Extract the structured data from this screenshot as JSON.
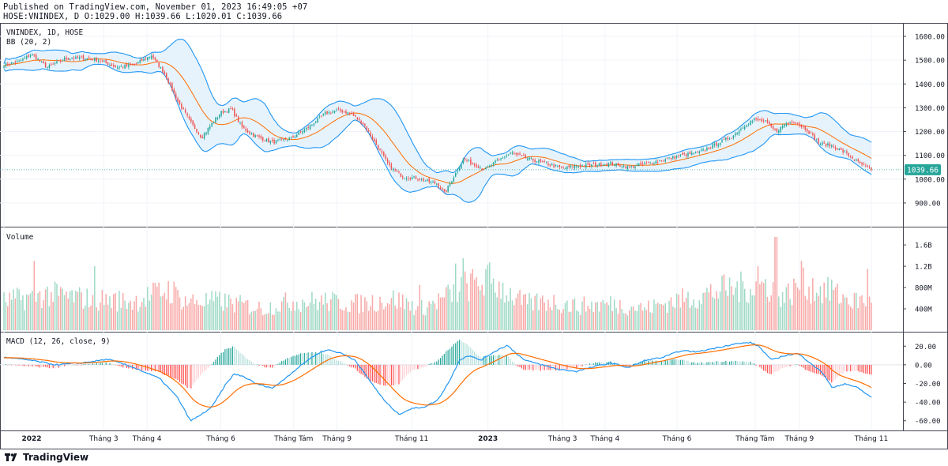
{
  "header": {
    "published": "Published on TradingView.com, November 01, 2023 16:49:05 +07",
    "ohlc": "HOSE:VNINDEX, D O:1029.00 H:1039.66 L:1020.01 C:1039.66"
  },
  "panes": {
    "price_title": "VNINDEX, 1D, HOSE",
    "bb_label": "BB (20, 2)",
    "volume_label": "Volume",
    "macd_label": "MACD (12, 26, close, 9)",
    "last_price": "1039.66"
  },
  "footer": {
    "brand": "TradingView"
  },
  "colors": {
    "up": "#26a69a",
    "down": "#ef5350",
    "bb_band": "#2196f3",
    "bb_basis": "#ff6d00",
    "bb_fill": "#e3f2fd",
    "macd_line": "#2196f3",
    "signal_line": "#ff6d00",
    "vol_up": "#9fd9c5",
    "vol_down": "#f7a9a7",
    "last_price_tag": "#26a69a"
  },
  "chart_data": {
    "type": "candlestick",
    "x_labels": [
      "2022",
      "Tháng 3",
      "Tháng 4",
      "Tháng 6",
      "Tháng Tám",
      "Tháng 9",
      "Tháng 11",
      "2023",
      "Tháng 3",
      "Tháng 4",
      "Tháng 6",
      "Tháng Tám",
      "Tháng 9",
      "Tháng 11"
    ],
    "x_label_frac": [
      0.0,
      0.115,
      0.165,
      0.25,
      0.334,
      0.384,
      0.47,
      0.558,
      0.644,
      0.693,
      0.776,
      0.866,
      0.917,
      1.0
    ],
    "price_axis": {
      "ticks": [
        "1600.00",
        "1500.00",
        "1400.00",
        "1300.00",
        "1200.00",
        "1100.00",
        "1000.00",
        "900.00"
      ],
      "ylim": [
        850,
        1620
      ]
    },
    "volume_axis": {
      "ticks": [
        "1.6B",
        "1.2B",
        "800M",
        "400M"
      ],
      "ylim": [
        0,
        1.75
      ]
    },
    "macd_axis": {
      "ticks": [
        "20.00",
        "0.00",
        "-20.00",
        "-40.00",
        "-60.00"
      ],
      "ylim": [
        -67,
        27
      ]
    },
    "close_anchors": [
      [
        0.0,
        1480
      ],
      [
        0.018,
        1495
      ],
      [
        0.032,
        1525
      ],
      [
        0.05,
        1470
      ],
      [
        0.07,
        1505
      ],
      [
        0.09,
        1510
      ],
      [
        0.11,
        1500
      ],
      [
        0.13,
        1470
      ],
      [
        0.15,
        1480
      ],
      [
        0.17,
        1520
      ],
      [
        0.185,
        1445
      ],
      [
        0.2,
        1330
      ],
      [
        0.215,
        1240
      ],
      [
        0.228,
        1175
      ],
      [
        0.24,
        1235
      ],
      [
        0.25,
        1280
      ],
      [
        0.262,
        1295
      ],
      [
        0.275,
        1215
      ],
      [
        0.29,
        1180
      ],
      [
        0.31,
        1155
      ],
      [
        0.33,
        1170
      ],
      [
        0.35,
        1215
      ],
      [
        0.37,
        1275
      ],
      [
        0.385,
        1290
      ],
      [
        0.4,
        1275
      ],
      [
        0.415,
        1230
      ],
      [
        0.43,
        1140
      ],
      [
        0.445,
        1050
      ],
      [
        0.46,
        1010
      ],
      [
        0.475,
        1005
      ],
      [
        0.49,
        990
      ],
      [
        0.5,
        980
      ],
      [
        0.508,
        940
      ],
      [
        0.52,
        1020
      ],
      [
        0.53,
        1085
      ],
      [
        0.54,
        1065
      ],
      [
        0.555,
        1040
      ],
      [
        0.57,
        1080
      ],
      [
        0.585,
        1110
      ],
      [
        0.6,
        1090
      ],
      [
        0.615,
        1075
      ],
      [
        0.63,
        1060
      ],
      [
        0.645,
        1045
      ],
      [
        0.66,
        1055
      ],
      [
        0.68,
        1060
      ],
      [
        0.7,
        1065
      ],
      [
        0.72,
        1050
      ],
      [
        0.74,
        1065
      ],
      [
        0.76,
        1080
      ],
      [
        0.78,
        1100
      ],
      [
        0.8,
        1110
      ],
      [
        0.82,
        1145
      ],
      [
        0.84,
        1180
      ],
      [
        0.855,
        1230
      ],
      [
        0.865,
        1250
      ],
      [
        0.878,
        1240
      ],
      [
        0.89,
        1200
      ],
      [
        0.9,
        1230
      ],
      [
        0.91,
        1245
      ],
      [
        0.925,
        1210
      ],
      [
        0.94,
        1150
      ],
      [
        0.955,
        1140
      ],
      [
        0.97,
        1110
      ],
      [
        0.985,
        1070
      ],
      [
        1.0,
        1039.66
      ]
    ],
    "macd_anchors": [
      [
        0.0,
        8
      ],
      [
        0.03,
        5
      ],
      [
        0.06,
        0
      ],
      [
        0.09,
        2
      ],
      [
        0.12,
        6
      ],
      [
        0.15,
        -3
      ],
      [
        0.18,
        -15
      ],
      [
        0.2,
        -35
      ],
      [
        0.215,
        -60
      ],
      [
        0.225,
        -55
      ],
      [
        0.24,
        -45
      ],
      [
        0.255,
        -22
      ],
      [
        0.265,
        -10
      ],
      [
        0.275,
        -12
      ],
      [
        0.29,
        -20
      ],
      [
        0.31,
        -25
      ],
      [
        0.33,
        -10
      ],
      [
        0.35,
        5
      ],
      [
        0.365,
        14
      ],
      [
        0.375,
        16
      ],
      [
        0.39,
        12
      ],
      [
        0.405,
        5
      ],
      [
        0.42,
        -15
      ],
      [
        0.44,
        -40
      ],
      [
        0.455,
        -53
      ],
      [
        0.47,
        -47
      ],
      [
        0.485,
        -45
      ],
      [
        0.5,
        -38
      ],
      [
        0.515,
        -15
      ],
      [
        0.525,
        5
      ],
      [
        0.535,
        10
      ],
      [
        0.55,
        5
      ],
      [
        0.565,
        14
      ],
      [
        0.58,
        21
      ],
      [
        0.6,
        5
      ],
      [
        0.62,
        0
      ],
      [
        0.64,
        -5
      ],
      [
        0.66,
        -7
      ],
      [
        0.68,
        -2
      ],
      [
        0.7,
        2
      ],
      [
        0.72,
        -3
      ],
      [
        0.74,
        5
      ],
      [
        0.76,
        8
      ],
      [
        0.78,
        15
      ],
      [
        0.8,
        14
      ],
      [
        0.82,
        18
      ],
      [
        0.84,
        22
      ],
      [
        0.86,
        24
      ],
      [
        0.87,
        20
      ],
      [
        0.885,
        5
      ],
      [
        0.9,
        10
      ],
      [
        0.915,
        12
      ],
      [
        0.93,
        2
      ],
      [
        0.945,
        -10
      ],
      [
        0.955,
        -25
      ],
      [
        0.97,
        -20
      ],
      [
        0.985,
        -25
      ],
      [
        1.0,
        -35
      ]
    ],
    "volume_anchors": [
      [
        0.0,
        0.6
      ],
      [
        0.05,
        0.75
      ],
      [
        0.1,
        0.65
      ],
      [
        0.15,
        0.6
      ],
      [
        0.19,
        0.85
      ],
      [
        0.21,
        0.6
      ],
      [
        0.25,
        0.6
      ],
      [
        0.3,
        0.45
      ],
      [
        0.33,
        0.6
      ],
      [
        0.37,
        0.6
      ],
      [
        0.41,
        0.55
      ],
      [
        0.45,
        0.65
      ],
      [
        0.48,
        0.45
      ],
      [
        0.5,
        0.6
      ],
      [
        0.53,
        0.9
      ],
      [
        0.56,
        1.05
      ],
      [
        0.58,
        0.8
      ],
      [
        0.6,
        0.55
      ],
      [
        0.63,
        0.6
      ],
      [
        0.66,
        0.5
      ],
      [
        0.7,
        0.55
      ],
      [
        0.74,
        0.45
      ],
      [
        0.77,
        0.6
      ],
      [
        0.8,
        0.7
      ],
      [
        0.83,
        0.85
      ],
      [
        0.86,
        0.9
      ],
      [
        0.88,
        0.95
      ],
      [
        0.9,
        0.7
      ],
      [
        0.92,
        0.95
      ],
      [
        0.95,
        0.8
      ],
      [
        0.98,
        0.6
      ],
      [
        1.0,
        0.65
      ]
    ],
    "volume_spikes": [
      [
        0.89,
        1.75
      ],
      [
        0.53,
        1.35
      ],
      [
        0.52,
        1.25
      ],
      [
        0.105,
        1.2
      ],
      [
        0.92,
        1.3
      ],
      [
        0.87,
        1.2
      ],
      [
        0.995,
        1.15
      ],
      [
        0.955,
        0.95
      ],
      [
        0.035,
        1.3
      ],
      [
        0.48,
        0.85
      ]
    ]
  }
}
